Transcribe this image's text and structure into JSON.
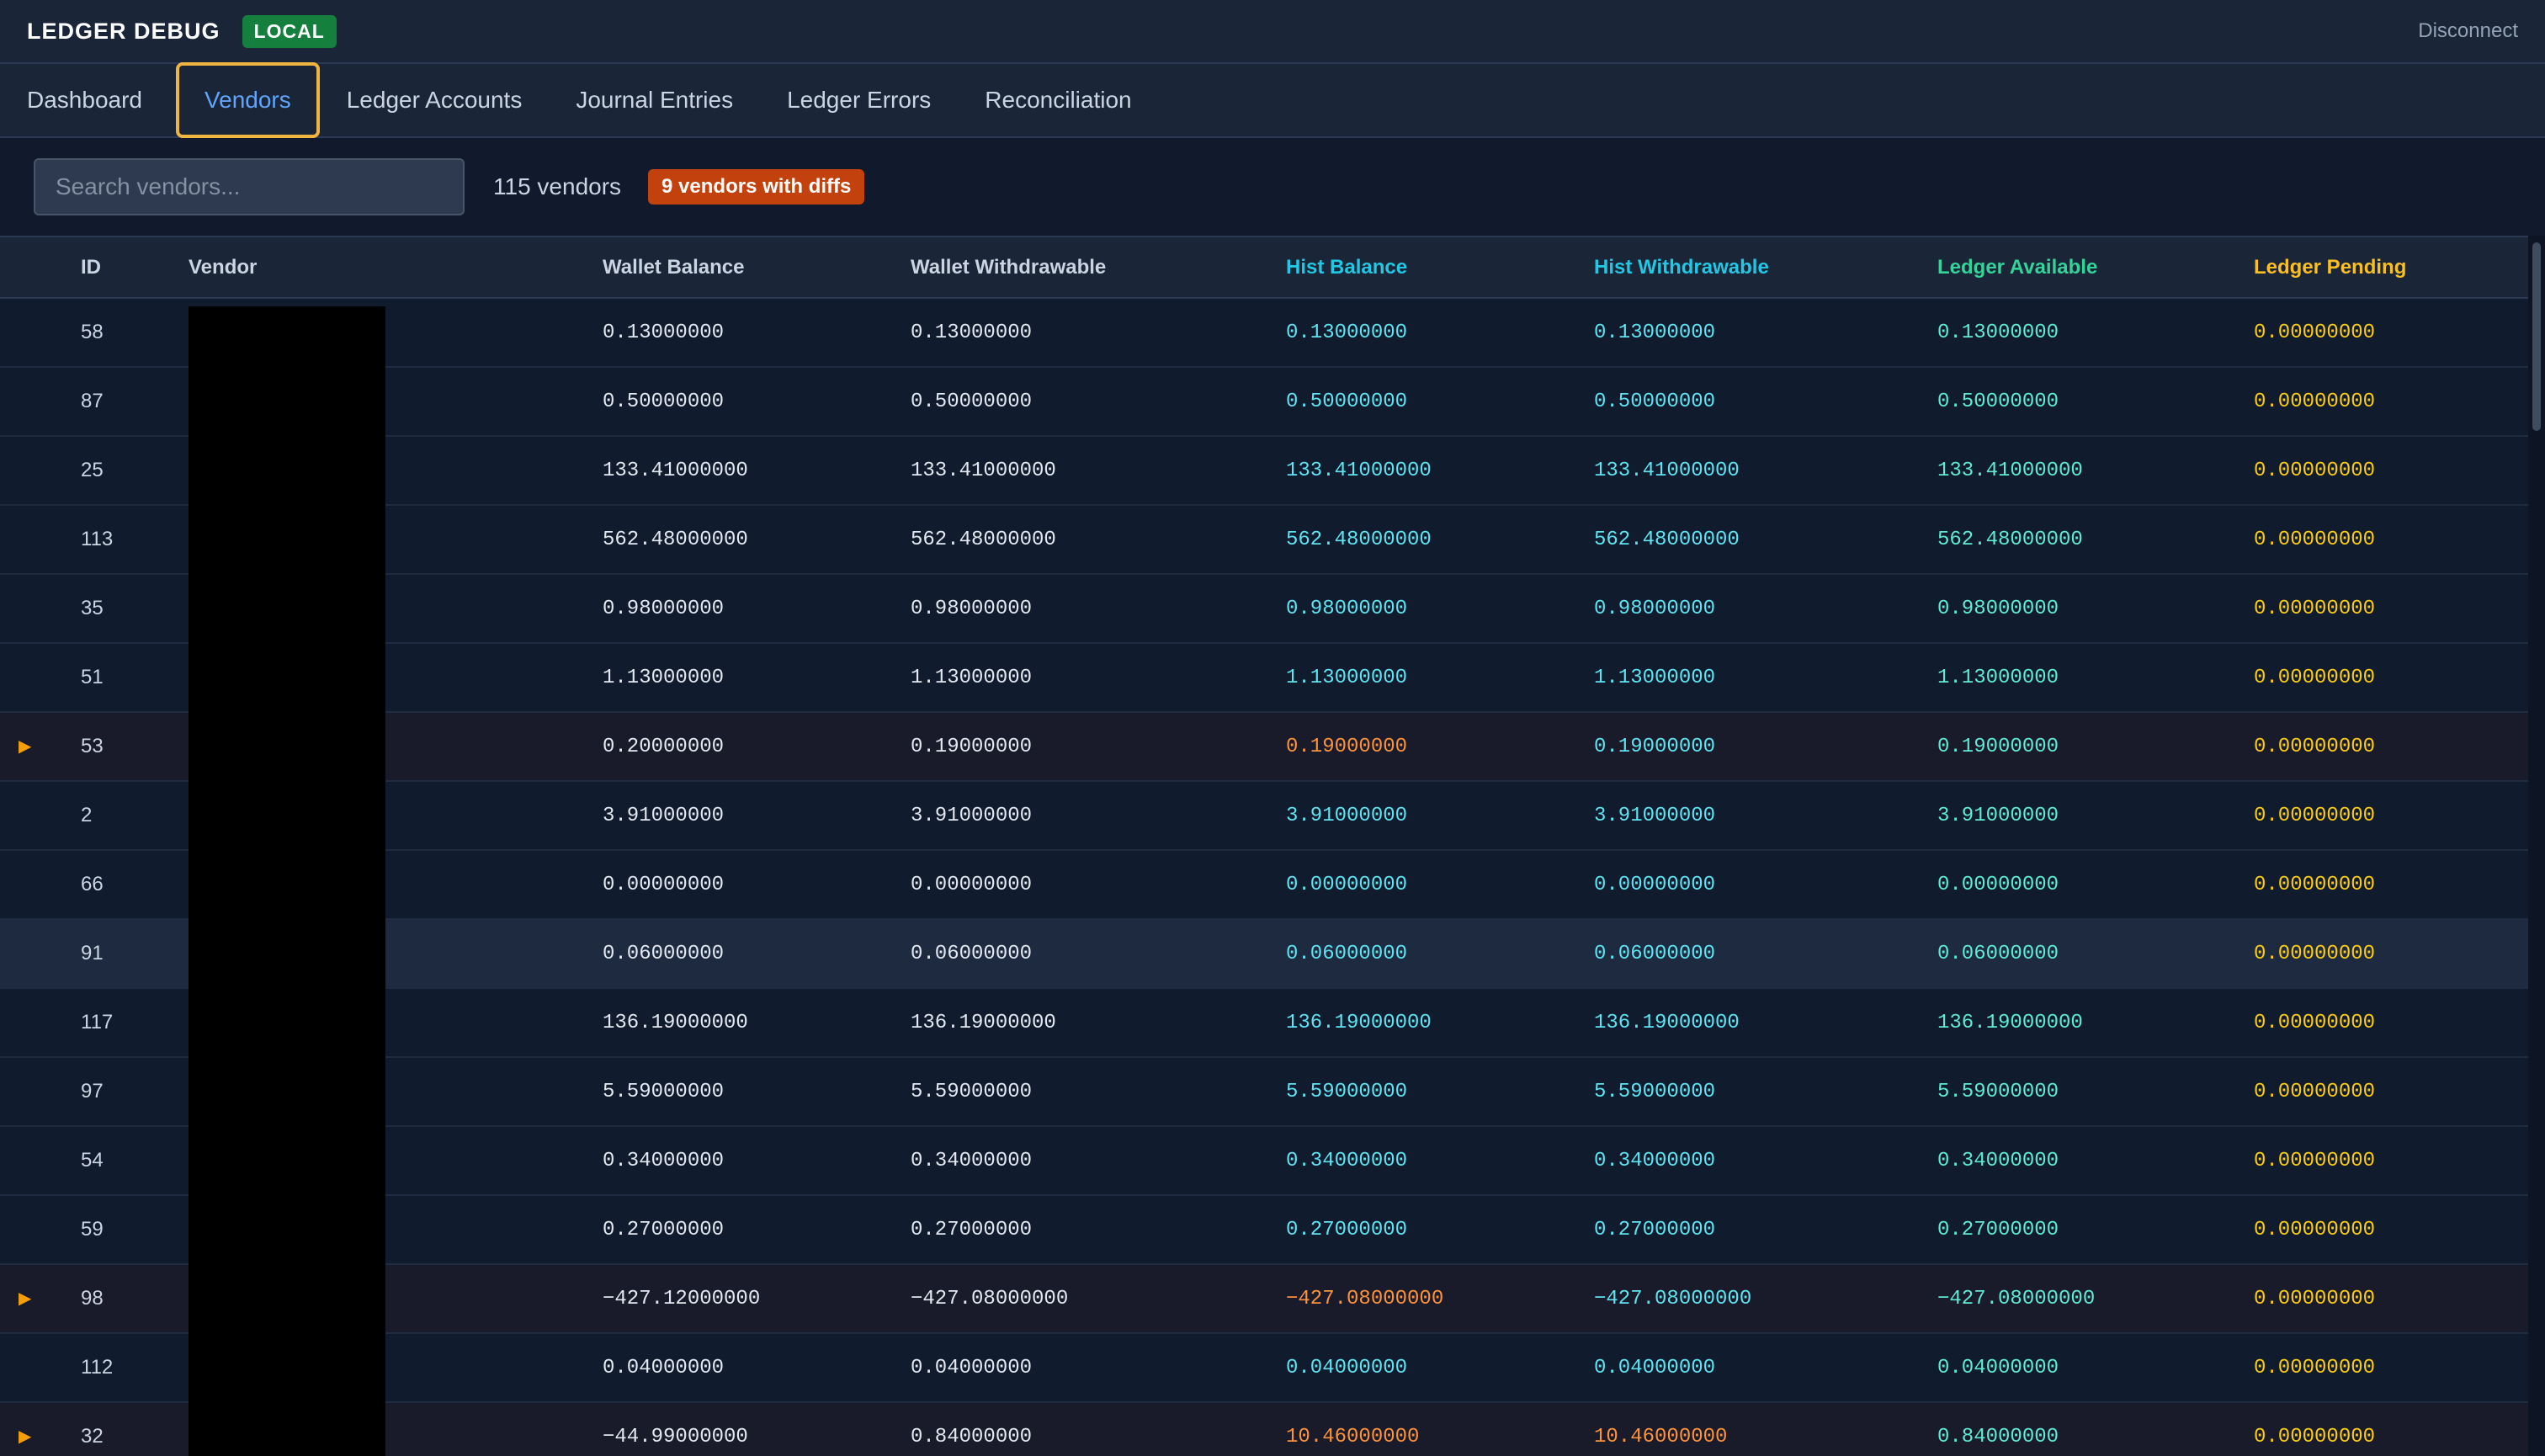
{
  "header": {
    "title": "LEDGER DEBUG",
    "env_badge": "LOCAL",
    "disconnect_label": "Disconnect"
  },
  "tabs": [
    {
      "label": "Dashboard"
    },
    {
      "label": "Vendors",
      "active": true
    },
    {
      "label": "Ledger Accounts"
    },
    {
      "label": "Journal Entries"
    },
    {
      "label": "Ledger Errors"
    },
    {
      "label": "Reconciliation"
    }
  ],
  "toolbar": {
    "search_placeholder": "Search vendors...",
    "search_value": "",
    "vendor_count": "115 vendors",
    "diff_badge": "9 vendors with diffs"
  },
  "colors": {
    "accent_tab": "#60a5fa",
    "tab_focus_ring": "#f0b441",
    "env_badge": "#15803d",
    "diff_badge": "#c2410c",
    "hist": "#5fe3f0",
    "ledger": "#5eead4",
    "pending": "#facc15",
    "diff_value": "#fb923c"
  },
  "table": {
    "columns": [
      "ID",
      "Vendor",
      "Wallet Balance",
      "Wallet Withdrawable",
      "Hist Balance",
      "Hist Withdrawable",
      "Ledger Available",
      "Ledger Pending"
    ],
    "rows": [
      {
        "id": "58",
        "vendor": "",
        "wallet_balance": "0.13000000",
        "wallet_withdrawable": "0.13000000",
        "hist_balance": "0.13000000",
        "hist_withdrawable": "0.13000000",
        "ledger_available": "0.13000000",
        "ledger_pending": "0.00000000"
      },
      {
        "id": "87",
        "vendor": "",
        "wallet_balance": "0.50000000",
        "wallet_withdrawable": "0.50000000",
        "hist_balance": "0.50000000",
        "hist_withdrawable": "0.50000000",
        "ledger_available": "0.50000000",
        "ledger_pending": "0.00000000"
      },
      {
        "id": "25",
        "vendor": "",
        "wallet_balance": "133.41000000",
        "wallet_withdrawable": "133.41000000",
        "hist_balance": "133.41000000",
        "hist_withdrawable": "133.41000000",
        "ledger_available": "133.41000000",
        "ledger_pending": "0.00000000"
      },
      {
        "id": "113",
        "vendor": "",
        "wallet_balance": "562.48000000",
        "wallet_withdrawable": "562.48000000",
        "hist_balance": "562.48000000",
        "hist_withdrawable": "562.48000000",
        "ledger_available": "562.48000000",
        "ledger_pending": "0.00000000"
      },
      {
        "id": "35",
        "vendor": "",
        "wallet_balance": "0.98000000",
        "wallet_withdrawable": "0.98000000",
        "hist_balance": "0.98000000",
        "hist_withdrawable": "0.98000000",
        "ledger_available": "0.98000000",
        "ledger_pending": "0.00000000"
      },
      {
        "id": "51",
        "vendor": "",
        "wallet_balance": "1.13000000",
        "wallet_withdrawable": "1.13000000",
        "hist_balance": "1.13000000",
        "hist_withdrawable": "1.13000000",
        "ledger_available": "1.13000000",
        "ledger_pending": "0.00000000"
      },
      {
        "id": "53",
        "vendor": "",
        "has_diff": true,
        "diff_cols": [
          "hist_balance"
        ],
        "wallet_balance": "0.20000000",
        "wallet_withdrawable": "0.19000000",
        "hist_balance": "0.19000000",
        "hist_withdrawable": "0.19000000",
        "ledger_available": "0.19000000",
        "ledger_pending": "0.00000000"
      },
      {
        "id": "2",
        "vendor": "",
        "wallet_balance": "3.91000000",
        "wallet_withdrawable": "3.91000000",
        "hist_balance": "3.91000000",
        "hist_withdrawable": "3.91000000",
        "ledger_available": "3.91000000",
        "ledger_pending": "0.00000000"
      },
      {
        "id": "66",
        "vendor": "",
        "wallet_balance": "0.00000000",
        "wallet_withdrawable": "0.00000000",
        "hist_balance": "0.00000000",
        "hist_withdrawable": "0.00000000",
        "ledger_available": "0.00000000",
        "ledger_pending": "0.00000000"
      },
      {
        "id": "91",
        "vendor": "",
        "hovered": true,
        "wallet_balance": "0.06000000",
        "wallet_withdrawable": "0.06000000",
        "hist_balance": "0.06000000",
        "hist_withdrawable": "0.06000000",
        "ledger_available": "0.06000000",
        "ledger_pending": "0.00000000"
      },
      {
        "id": "117",
        "vendor": "",
        "wallet_balance": "136.19000000",
        "wallet_withdrawable": "136.19000000",
        "hist_balance": "136.19000000",
        "hist_withdrawable": "136.19000000",
        "ledger_available": "136.19000000",
        "ledger_pending": "0.00000000"
      },
      {
        "id": "97",
        "vendor": "",
        "wallet_balance": "5.59000000",
        "wallet_withdrawable": "5.59000000",
        "hist_balance": "5.59000000",
        "hist_withdrawable": "5.59000000",
        "ledger_available": "5.59000000",
        "ledger_pending": "0.00000000"
      },
      {
        "id": "54",
        "vendor": "",
        "wallet_balance": "0.34000000",
        "wallet_withdrawable": "0.34000000",
        "hist_balance": "0.34000000",
        "hist_withdrawable": "0.34000000",
        "ledger_available": "0.34000000",
        "ledger_pending": "0.00000000"
      },
      {
        "id": "59",
        "vendor": "",
        "wallet_balance": "0.27000000",
        "wallet_withdrawable": "0.27000000",
        "hist_balance": "0.27000000",
        "hist_withdrawable": "0.27000000",
        "ledger_available": "0.27000000",
        "ledger_pending": "0.00000000"
      },
      {
        "id": "98",
        "vendor": "",
        "has_diff": true,
        "diff_cols": [
          "hist_balance"
        ],
        "wallet_balance": "−427.12000000",
        "wallet_withdrawable": "−427.08000000",
        "hist_balance": "−427.08000000",
        "hist_withdrawable": "−427.08000000",
        "ledger_available": "−427.08000000",
        "ledger_pending": "0.00000000"
      },
      {
        "id": "112",
        "vendor": "",
        "wallet_balance": "0.04000000",
        "wallet_withdrawable": "0.04000000",
        "hist_balance": "0.04000000",
        "hist_withdrawable": "0.04000000",
        "ledger_available": "0.04000000",
        "ledger_pending": "0.00000000"
      },
      {
        "id": "32",
        "vendor": "",
        "has_diff": true,
        "diff_cols": [
          "hist_balance",
          "hist_withdrawable"
        ],
        "wallet_balance": "−44.99000000",
        "wallet_withdrawable": "0.84000000",
        "hist_balance": "10.46000000",
        "hist_withdrawable": "10.46000000",
        "ledger_available": "0.84000000",
        "ledger_pending": "0.00000000"
      }
    ]
  }
}
